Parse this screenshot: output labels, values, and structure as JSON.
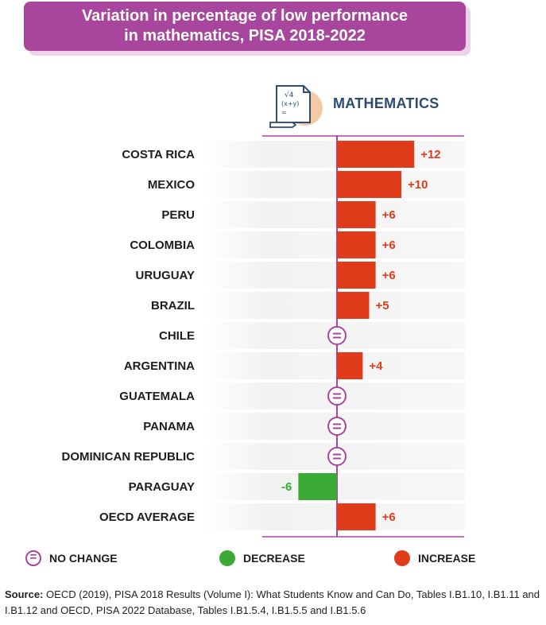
{
  "title": {
    "line1": "Variation in percentage of low performance",
    "line2": "in mathematics, PISA 2018-2022"
  },
  "subject": {
    "label": "MATHEMATICS",
    "icon": "math-formula-icon",
    "icon_text_top": "√4",
    "icon_text_mid": "(x+y)",
    "icon_text_bot": "="
  },
  "colors": {
    "increase": "#e03b1b",
    "decrease": "#3aa935",
    "no_change": "#a8469d",
    "title_bg": "#a8469d"
  },
  "chart_data": {
    "type": "bar",
    "orientation": "horizontal",
    "title": "Variation in percentage of low performance in mathematics, PISA 2018-2022",
    "subtitle": "MATHEMATICS",
    "categories": [
      "COSTA RICA",
      "MEXICO",
      "PERU",
      "COLOMBIA",
      "URUGUAY",
      "BRAZIL",
      "CHILE",
      "ARGENTINA",
      "GUATEMALA",
      "PANAMA",
      "DOMINICAN REPUBLIC",
      "PARAGUAY",
      "OECD AVERAGE"
    ],
    "values": [
      12,
      10,
      6,
      6,
      6,
      5,
      0,
      4,
      0,
      0,
      0,
      -6,
      6
    ],
    "status": [
      "increase",
      "increase",
      "increase",
      "increase",
      "increase",
      "increase",
      "no_change",
      "increase",
      "no_change",
      "no_change",
      "no_change",
      "decrease",
      "increase"
    ],
    "labels": [
      "+12",
      "+10",
      "+6",
      "+6",
      "+6",
      "+5",
      "",
      "+4",
      "",
      "",
      "",
      "-6",
      "+6"
    ],
    "xlim": [
      -6,
      20
    ],
    "grid": false,
    "legend": "bottom"
  },
  "legend": {
    "no_change": "NO CHANGE",
    "decrease": "DECREASE",
    "increase": "INCREASE"
  },
  "source": {
    "prefix": "Source:",
    "text": "OECD (2019), PISA 2018 Results (Volume I): What Students Know and Can Do, Tables I.B1.10, I.B1.11 and I.B1.12 and OECD, PISA 2022 Database, Tables I.B1.5.4, I.B1.5.5 and I.B1.5.6"
  }
}
